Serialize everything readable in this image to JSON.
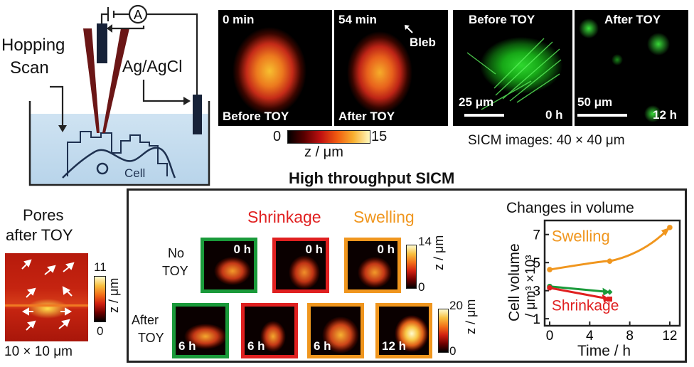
{
  "schematic": {
    "hopping_label_1": "Hopping",
    "hopping_label_2": "Scan",
    "ammeter": "A",
    "electrode": "Ag/AgCl",
    "cell": "Cell"
  },
  "topo_panel": {
    "tile1_time": "0 min",
    "tile1_caption": "Before TOY",
    "tile2_time": "54 min",
    "tile2_caption": "After TOY",
    "bleb": "Bleb",
    "colorbar_min": "0",
    "colorbar_max": "15",
    "colorbar_label": "z / μm"
  },
  "fluor_panel": {
    "tile1_caption": "Before TOY",
    "tile1_scale": "25 μm",
    "tile1_time": "0 h",
    "tile2_caption": "After TOY",
    "tile2_scale": "50 μm",
    "tile2_time": "12 h",
    "note": "SICM images: 40 × 40 μm"
  },
  "section_title": "High throughput SICM",
  "pores_panel": {
    "title_1": "Pores",
    "title_2": "after TOY",
    "colorbar_max": "11",
    "colorbar_min": "0",
    "colorbar_label": "z / μm",
    "size": "10 × 10 μm"
  },
  "grid": {
    "shrinkage": "Shrinkage",
    "swelling": "Swelling",
    "row1_1": "No",
    "row1_2": "TOY",
    "row2_1": "After",
    "row2_2": "TOY",
    "top_tiles": [
      "0 h",
      "0 h",
      "0 h"
    ],
    "bottom_tiles": [
      "6 h",
      "6 h",
      "6 h",
      "12 h"
    ],
    "cb1_max": "14",
    "cb1_min": "0",
    "cb2_max": "20",
    "cb2_min": "0",
    "cb_label": "z / μm",
    "colors": {
      "green": "#1a9a3a",
      "red": "#e02020",
      "orange": "#f0961e"
    }
  },
  "chart_data": {
    "type": "line",
    "title": "Changes in volume",
    "xlabel": "Time / h",
    "ylabel_1": "Cell volume",
    "ylabel_2": "/ μm³ ×10³",
    "xlim": [
      -0.5,
      13
    ],
    "ylim": [
      0.5,
      8
    ],
    "xticks": [
      0,
      4,
      8,
      12
    ],
    "yticks": [
      1,
      3,
      5,
      7
    ],
    "x_tick_labels": [
      "0",
      "4",
      "8",
      "12"
    ],
    "y_tick_labels": [
      "1",
      "3",
      "5",
      "7"
    ],
    "annotations": {
      "swelling": "Swelling",
      "shrinkage": "Shrinkage"
    },
    "series": [
      {
        "color": "#f0961e",
        "x": [
          0,
          6,
          12
        ],
        "y": [
          4.5,
          5.1,
          7.5
        ]
      },
      {
        "color": "#1a9a3a",
        "x": [
          0,
          6
        ],
        "y": [
          3.3,
          2.9
        ]
      },
      {
        "color": "#e02020",
        "x": [
          0,
          6
        ],
        "y": [
          3.2,
          2.4
        ]
      }
    ]
  }
}
